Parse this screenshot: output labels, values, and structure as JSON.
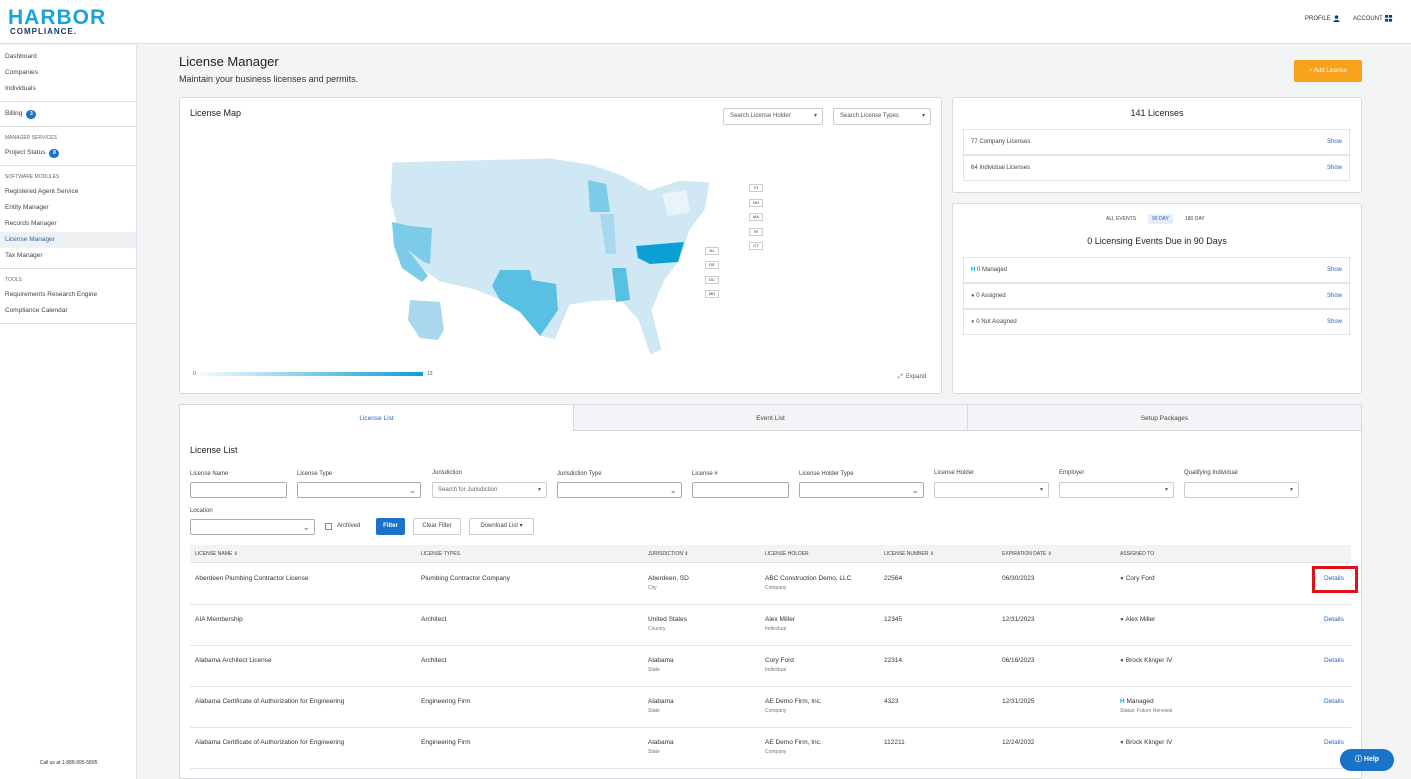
{
  "app": {
    "logo_line1": "HARBOR",
    "logo_line2": "COMPLIANCE."
  },
  "topnav": {
    "profile": "PROFILE",
    "account": "ACCOUNT"
  },
  "sidebar": {
    "items_top": [
      {
        "label": "Dashboard"
      },
      {
        "label": "Companies"
      },
      {
        "label": "Individuals"
      }
    ],
    "billing": {
      "label": "Billing",
      "count": "3"
    },
    "managed_head": "MANAGED SERVICES",
    "project_status": {
      "label": "Project Status",
      "count": "8"
    },
    "modules_head": "SOFTWARE MODULES",
    "modules": [
      {
        "label": "Registered Agent Service"
      },
      {
        "label": "Entity Manager"
      },
      {
        "label": "Records Manager"
      },
      {
        "label": "License Manager"
      },
      {
        "label": "Tax Manager"
      }
    ],
    "tools_head": "TOOLS",
    "tools": [
      {
        "label": "Requirements Research Engine"
      },
      {
        "label": "Compliance Calendar"
      }
    ],
    "callus": "Call us at 1-888-995-5895"
  },
  "page": {
    "title": "License Manager",
    "subtitle": "Maintain your business licenses and permits.",
    "add_button": "+ Add License"
  },
  "map": {
    "title": "License Map",
    "search_holder": "Search License Holder",
    "search_types": "Search License Types",
    "legend_min": "0",
    "legend_max": "13",
    "expand": "Expand",
    "small_states": [
      "VT",
      "NH",
      "MA",
      "RI",
      "CT",
      "NJ",
      "DE",
      "DC",
      "MD"
    ],
    "colors": {
      "light": "#eaf4fa",
      "mid": "#a9d7ed",
      "dark": "#58c0e3",
      "max": "#0c9fd6"
    }
  },
  "summary": {
    "total": "141 Licenses",
    "rows": [
      {
        "label": "77 Company Licenses",
        "action": "Show"
      },
      {
        "label": "64 Individual Licenses",
        "action": "Show"
      }
    ]
  },
  "events": {
    "filters": [
      "ALL EVENTS",
      "90 DAY",
      "180 DAY"
    ],
    "title": "0 Licensing Events Due in 90 Days",
    "rows": [
      {
        "label": "0 Managed",
        "action": "Show"
      },
      {
        "label": "0 Assigned",
        "action": "Show"
      },
      {
        "label": "0 Not Assigned",
        "action": "Show"
      }
    ]
  },
  "tabs": [
    "License List",
    "Event List",
    "Setup Packages"
  ],
  "list": {
    "title": "License List",
    "filters": {
      "license_name": "License Name",
      "license_type": "License Type",
      "jurisdiction": "Jurisdiction",
      "jurisdiction_placeholder": "Search for Jurisdiction",
      "jurisdiction_type": "Jurisdiction Type",
      "license_no": "License #",
      "holder_type": "License Holder Type",
      "holder": "License Holder",
      "employer": "Employer",
      "qualifying": "Qualifying Individual",
      "location": "Location",
      "archived": "Archived",
      "filter_btn": "Filter",
      "clear_btn": "Clear Filter",
      "download_btn": "Download List"
    },
    "columns": [
      "LICENSE NAME",
      "LICENSE TYPES",
      "JURISDICTION",
      "LICENSE HOLDER",
      "LICENSE NUMBER",
      "EXPIRATION DATE",
      "ASSIGNED TO"
    ],
    "rows": [
      {
        "name": "Aberdeen Plumbing Contractor License",
        "type": "Plumbing Contractor Company",
        "jur": "Aberdeen, SD",
        "jur_sub": "City",
        "holder": "ABC Construction Demo, LLC",
        "holder_sub": "Company",
        "number": "22564",
        "exp": "06/30/2023",
        "assigned": "Cory Ford",
        "assigned_sub": "",
        "action": "Details"
      },
      {
        "name": "AIA Membership",
        "type": "Architect",
        "jur": "United States",
        "jur_sub": "Country",
        "holder": "Alex Miller",
        "holder_sub": "Individual",
        "number": "12345",
        "exp": "12/31/2023",
        "assigned": "Alex Miller",
        "assigned_sub": "",
        "action": "Details"
      },
      {
        "name": "Alabama Architect License",
        "type": "Architect",
        "jur": "Alabama",
        "jur_sub": "State",
        "holder": "Cory Ford",
        "holder_sub": "Individual",
        "number": "22314",
        "exp": "06/16/2023",
        "assigned": "Brock Klinger IV",
        "assigned_sub": "",
        "action": "Details"
      },
      {
        "name": "Alabama Certificate of Authorization for Engineering",
        "type": "Engineering Firm",
        "jur": "Alabama",
        "jur_sub": "State",
        "holder": "AE Demo Firm, Inc.",
        "holder_sub": "Company",
        "number": "4323",
        "exp": "12/31/2025",
        "assigned": "Managed",
        "assigned_sub": "Status: Future Renewal",
        "action": "Details"
      },
      {
        "name": "Alabama Certificate of Authorization for Engineering",
        "type": "Engineering Firm",
        "jur": "Alabama",
        "jur_sub": "State",
        "holder": "AE Demo Firm, Inc.",
        "holder_sub": "Company",
        "number": "112211",
        "exp": "12/24/2032",
        "assigned": "Brock Klinger IV",
        "assigned_sub": "",
        "action": "Details"
      }
    ]
  },
  "help": "Help"
}
